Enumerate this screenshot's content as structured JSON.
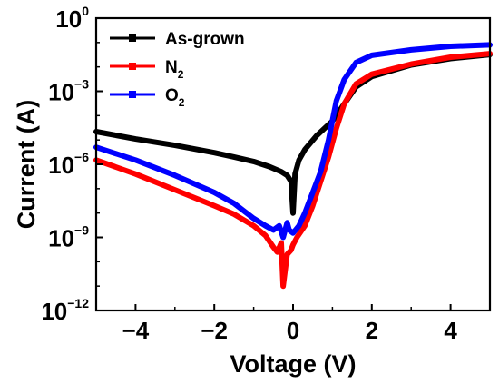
{
  "chart_data": {
    "type": "line",
    "xlabel": "Voltage (V)",
    "ylabel": "Current (A)",
    "xlim": [
      -5,
      5
    ],
    "ylim_log10": [
      -12,
      0
    ],
    "y_scale": "log",
    "grid": false,
    "legend_position": "top-left",
    "x_ticks": [
      {
        "value": -4,
        "label": "−4"
      },
      {
        "value": -2,
        "label": "−2"
      },
      {
        "value": 0,
        "label": "0"
      },
      {
        "value": 2,
        "label": "2"
      },
      {
        "value": 4,
        "label": "4"
      }
    ],
    "y_ticks": [
      {
        "value": 1,
        "label_base": "10",
        "label_exp": "0"
      },
      {
        "value": 0.001,
        "label_base": "10",
        "label_exp": "−3"
      },
      {
        "value": 1e-06,
        "label_base": "10",
        "label_exp": "−6"
      },
      {
        "value": 1e-09,
        "label_base": "10",
        "label_exp": "−9"
      },
      {
        "value": 1e-12,
        "label_base": "10",
        "label_exp": "−12"
      }
    ],
    "series": [
      {
        "name": "As-grown",
        "label_base": "As-grown",
        "label_sub": "",
        "color": "#000000",
        "x": [
          -5,
          -4,
          -3,
          -2,
          -1.5,
          -1,
          -0.6,
          -0.3,
          -0.15,
          -0.05,
          0,
          0.05,
          0.15,
          0.3,
          0.6,
          1.0,
          1.3,
          1.6,
          2.0,
          3.0,
          4.0,
          5.0
        ],
        "y": [
          2.2e-05,
          1.1e-05,
          6e-06,
          3e-06,
          2e-06,
          1.3e-06,
          8e-07,
          5e-07,
          3.5e-07,
          2e-07,
          1e-08,
          4e-07,
          1.5e-06,
          4e-06,
          1.5e-05,
          6e-05,
          0.0003,
          0.0015,
          0.004,
          0.012,
          0.022,
          0.032
        ]
      },
      {
        "name": "N2",
        "label_base": "N",
        "label_sub": "2",
        "color": "#ff0000",
        "x": [
          -5,
          -4,
          -3,
          -2,
          -1.5,
          -1,
          -0.7,
          -0.5,
          -0.4,
          -0.3,
          -0.25,
          -0.15,
          -0.05,
          0,
          0.1,
          0.3,
          0.5,
          0.7,
          0.9,
          1.1,
          1.3,
          1.6,
          2.0,
          3.0,
          4.0,
          5.0
        ],
        "y": [
          1.5e-06,
          4e-07,
          9e-08,
          2e-08,
          9e-09,
          3e-09,
          1.2e-09,
          4e-10,
          2.5e-10,
          6e-10,
          1e-11,
          2e-10,
          3e-10,
          5e-10,
          1e-09,
          3e-09,
          2e-08,
          2e-07,
          2e-06,
          3e-05,
          0.0003,
          0.002,
          0.005,
          0.013,
          0.025,
          0.035
        ]
      },
      {
        "name": "O2",
        "label_base": "O",
        "label_sub": "2",
        "color": "#0000ff",
        "x": [
          -5,
          -4,
          -3,
          -2,
          -1.5,
          -1,
          -0.7,
          -0.5,
          -0.35,
          -0.25,
          -0.15,
          -0.1,
          0,
          0.15,
          0.3,
          0.5,
          0.7,
          0.9,
          1.1,
          1.3,
          1.6,
          2.0,
          3.0,
          4.0,
          5.0
        ],
        "y": [
          5e-06,
          1.5e-06,
          3.5e-07,
          7e-08,
          2.5e-08,
          6e-09,
          3e-09,
          2e-09,
          3e-09,
          1e-09,
          4e-09,
          2e-09,
          1.5e-09,
          3e-09,
          1e-08,
          7e-08,
          5e-07,
          1e-05,
          0.0004,
          0.003,
          0.015,
          0.03,
          0.05,
          0.07,
          0.08
        ]
      }
    ]
  }
}
